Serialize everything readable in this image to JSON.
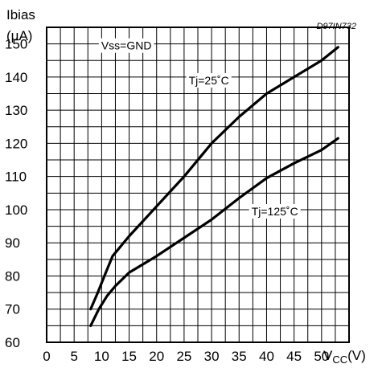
{
  "chart_data": {
    "type": "line",
    "figure_code": "D97IN732",
    "ylabel_line1": "Ibias",
    "ylabel_line2": "(μA)",
    "xlabel_main": "V",
    "xlabel_sub": "CC",
    "xlabel_unit": "(V)",
    "xlim": [
      0,
      55
    ],
    "ylim": [
      60,
      155
    ],
    "x_ticks": [
      "0",
      "5",
      "10",
      "15",
      "20",
      "25",
      "30",
      "35",
      "40",
      "45",
      "50"
    ],
    "y_ticks": [
      "60",
      "70",
      "80",
      "90",
      "100",
      "110",
      "120",
      "130",
      "140",
      "150"
    ],
    "grid": true,
    "annotations": [
      {
        "text": "Vss=GND",
        "x": 14.5,
        "y": 149.5
      },
      {
        "text": "Tj=25˚C",
        "x": 29.5,
        "y": 139
      },
      {
        "text": "Tj=125˚C",
        "x": 41.5,
        "y": 99.5
      }
    ],
    "series": [
      {
        "name": "Tj=25˚C",
        "x": [
          8,
          9.3,
          10.5,
          12,
          15,
          20,
          25,
          30,
          35,
          40,
          45,
          50,
          53
        ],
        "y": [
          70,
          75,
          80,
          86,
          92,
          101,
          110,
          120,
          128,
          135,
          140,
          145,
          149
        ]
      },
      {
        "name": "Tj=125˚C",
        "x": [
          8,
          9.5,
          11,
          12.5,
          15,
          20,
          25,
          30,
          35,
          40,
          45,
          50,
          53
        ],
        "y": [
          65,
          70,
          74,
          77,
          81,
          86,
          91.5,
          97,
          103.5,
          109.5,
          114,
          118,
          121.5
        ]
      }
    ]
  }
}
